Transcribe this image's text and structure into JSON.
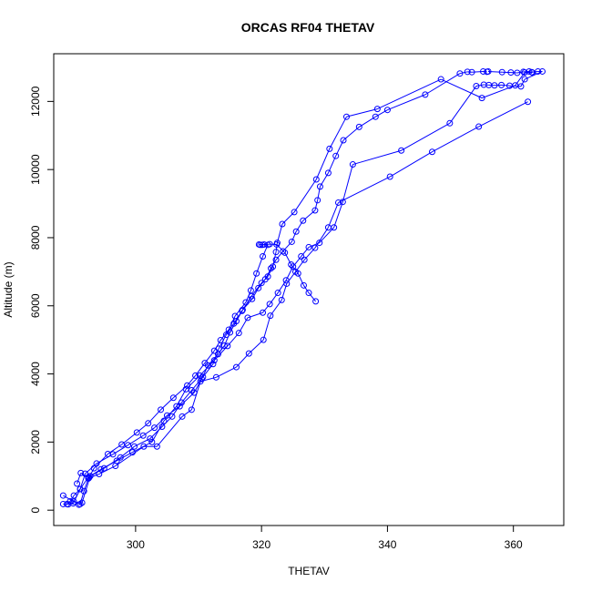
{
  "chart_data": {
    "type": "line",
    "title": "ORCAS RF04 THETAV",
    "xlabel": "THETAV",
    "ylabel": "Altitude (m)",
    "xlim": [
      287,
      368
    ],
    "ylim": [
      -450,
      13400
    ],
    "x_ticks": [
      300,
      320,
      340,
      360
    ],
    "y_ticks": [
      0,
      2000,
      4000,
      6000,
      8000,
      10000,
      12000
    ],
    "grid": false,
    "marker": "open-circle",
    "line_color": "#0000ff",
    "series": [
      {
        "points": [
          [
            288.5,
            430
          ],
          [
            290.2,
            250
          ],
          [
            291.2,
            180
          ],
          [
            291.8,
            560
          ],
          [
            292.5,
            930
          ],
          [
            293.4,
            1230
          ],
          [
            295.6,
            1650
          ],
          [
            297.8,
            1930
          ],
          [
            300.2,
            2280
          ],
          [
            302.0,
            2550
          ],
          [
            304.0,
            2950
          ],
          [
            306.0,
            3300
          ],
          [
            308.2,
            3660
          ],
          [
            309.5,
            3950
          ],
          [
            311.0,
            4320
          ],
          [
            312.5,
            4680
          ],
          [
            313.5,
            4990
          ],
          [
            314.8,
            5300
          ],
          [
            315.8,
            5700
          ],
          [
            317.5,
            6100
          ],
          [
            318.3,
            6450
          ],
          [
            319.2,
            6950
          ],
          [
            320.2,
            7450
          ],
          [
            321.0,
            7790
          ],
          [
            319.6,
            7800
          ],
          [
            319.8,
            7790
          ],
          [
            320.1,
            7790
          ],
          [
            320.4,
            7800
          ],
          [
            321.3,
            7810
          ],
          [
            322.4,
            7800
          ],
          [
            323.7,
            7560
          ],
          [
            324.7,
            7210
          ],
          [
            325.8,
            6950
          ],
          [
            326.7,
            6600
          ],
          [
            327.5,
            6380
          ],
          [
            328.6,
            6130
          ]
        ]
      },
      {
        "points": [
          [
            288.5,
            180
          ],
          [
            289.3,
            170
          ],
          [
            290.1,
            200
          ],
          [
            291.2,
            620
          ],
          [
            292.0,
            1070
          ],
          [
            293.8,
            1370
          ],
          [
            296.4,
            1640
          ],
          [
            298.8,
            1910
          ],
          [
            301.2,
            2190
          ],
          [
            303.0,
            2420
          ],
          [
            305.0,
            2780
          ],
          [
            307.0,
            3050
          ],
          [
            309.3,
            3450
          ],
          [
            310.5,
            3850
          ],
          [
            311.5,
            4250
          ],
          [
            313.1,
            4580
          ],
          [
            314.1,
            4830
          ],
          [
            315.0,
            5220
          ],
          [
            316.0,
            5550
          ],
          [
            317.0,
            5880
          ],
          [
            318.5,
            6200
          ],
          [
            319.5,
            6520
          ],
          [
            320.6,
            6780
          ],
          [
            321.5,
            7100
          ],
          [
            322.3,
            7350
          ],
          [
            323.4,
            7600
          ],
          [
            324.8,
            7880
          ],
          [
            325.5,
            8180
          ],
          [
            326.6,
            8500
          ],
          [
            328.5,
            8800
          ],
          [
            328.9,
            9100
          ],
          [
            329.3,
            9500
          ],
          [
            330.6,
            9900
          ],
          [
            331.8,
            10400
          ],
          [
            333.0,
            10860
          ],
          [
            335.5,
            11250
          ],
          [
            338.1,
            11550
          ],
          [
            340.0,
            11750
          ],
          [
            346.0,
            12200
          ],
          [
            351.5,
            12820
          ],
          [
            352.7,
            12870
          ],
          [
            353.4,
            12860
          ],
          [
            355.2,
            12880
          ],
          [
            355.8,
            12870
          ]
        ]
      },
      {
        "points": [
          [
            356.0,
            12880
          ],
          [
            358.2,
            12860
          ],
          [
            359.6,
            12850
          ],
          [
            360.6,
            12840
          ],
          [
            361.6,
            12870
          ],
          [
            362.5,
            12880
          ],
          [
            362.9,
            12860
          ],
          [
            363.9,
            12880
          ],
          [
            364.6,
            12880
          ],
          [
            361.8,
            12650
          ],
          [
            361.2,
            12440
          ],
          [
            359.4,
            12460
          ],
          [
            358.1,
            12480
          ],
          [
            357.0,
            12470
          ],
          [
            356.1,
            12480
          ],
          [
            355.3,
            12490
          ],
          [
            354.1,
            12450
          ],
          [
            349.9,
            11360
          ],
          [
            342.2,
            10560
          ],
          [
            334.5,
            10150
          ],
          [
            332.9,
            9050
          ],
          [
            331.5,
            8300
          ],
          [
            329.2,
            7850
          ],
          [
            327.5,
            7720
          ],
          [
            326.3,
            7450
          ],
          [
            325.0,
            7150
          ],
          [
            323.9,
            6750
          ],
          [
            322.6,
            6380
          ],
          [
            321.3,
            6050
          ],
          [
            320.2,
            5800
          ],
          [
            317.8,
            5650
          ],
          [
            316.4,
            5200
          ],
          [
            314.6,
            4820
          ],
          [
            312.5,
            4400
          ],
          [
            310.2,
            3950
          ],
          [
            308.0,
            3550
          ],
          [
            306.5,
            3050
          ],
          [
            304.5,
            2620
          ],
          [
            302.6,
            2000
          ],
          [
            299.5,
            1700
          ],
          [
            297.0,
            1450
          ],
          [
            294.5,
            1200
          ],
          [
            292.5,
            970
          ],
          [
            291.2,
            620
          ],
          [
            290.2,
            430
          ],
          [
            289.6,
            260
          ],
          [
            289.1,
            180
          ]
        ]
      },
      {
        "points": [
          [
            291.0,
            160
          ],
          [
            291.5,
            220
          ],
          [
            292.8,
            1000
          ],
          [
            295.0,
            1230
          ],
          [
            297.6,
            1550
          ],
          [
            299.8,
            1870
          ],
          [
            302.3,
            2100
          ],
          [
            304.2,
            2450
          ],
          [
            305.8,
            2750
          ],
          [
            307.3,
            3160
          ],
          [
            308.9,
            3520
          ],
          [
            310.7,
            3910
          ],
          [
            312.3,
            4290
          ],
          [
            313.2,
            4740
          ],
          [
            314.4,
            5150
          ],
          [
            315.6,
            5480
          ],
          [
            316.9,
            5850
          ],
          [
            318.4,
            6280
          ],
          [
            320.0,
            6670
          ],
          [
            321.0,
            6860
          ],
          [
            321.8,
            7150
          ],
          [
            322.3,
            7580
          ],
          [
            322.5,
            7850
          ],
          [
            323.3,
            8400
          ],
          [
            325.2,
            8750
          ],
          [
            328.7,
            9710
          ],
          [
            330.8,
            10610
          ],
          [
            333.5,
            11550
          ],
          [
            338.4,
            11780
          ],
          [
            348.5,
            12650
          ],
          [
            355.0,
            12100
          ],
          [
            360.3,
            12470
          ],
          [
            361.8,
            12850
          ],
          [
            363.0,
            12850
          ]
        ]
      },
      {
        "points": [
          [
            362.3,
            11990
          ],
          [
            354.5,
            11260
          ],
          [
            347.1,
            10520
          ],
          [
            340.4,
            9790
          ],
          [
            332.2,
            9030
          ],
          [
            330.6,
            8300
          ],
          [
            328.5,
            7700
          ],
          [
            326.8,
            7350
          ],
          [
            325.4,
            7000
          ],
          [
            324.0,
            6650
          ],
          [
            323.2,
            6170
          ],
          [
            321.4,
            5710
          ],
          [
            320.3,
            5000
          ],
          [
            318.0,
            4600
          ],
          [
            316.0,
            4200
          ],
          [
            312.8,
            3900
          ],
          [
            310.3,
            3780
          ],
          [
            308.9,
            2950
          ],
          [
            307.4,
            2750
          ],
          [
            303.4,
            1870
          ],
          [
            301.3,
            1870
          ],
          [
            296.8,
            1300
          ],
          [
            294.2,
            1060
          ],
          [
            292.6,
            950
          ],
          [
            291.3,
            1090
          ],
          [
            290.7,
            780
          ]
        ]
      }
    ]
  }
}
